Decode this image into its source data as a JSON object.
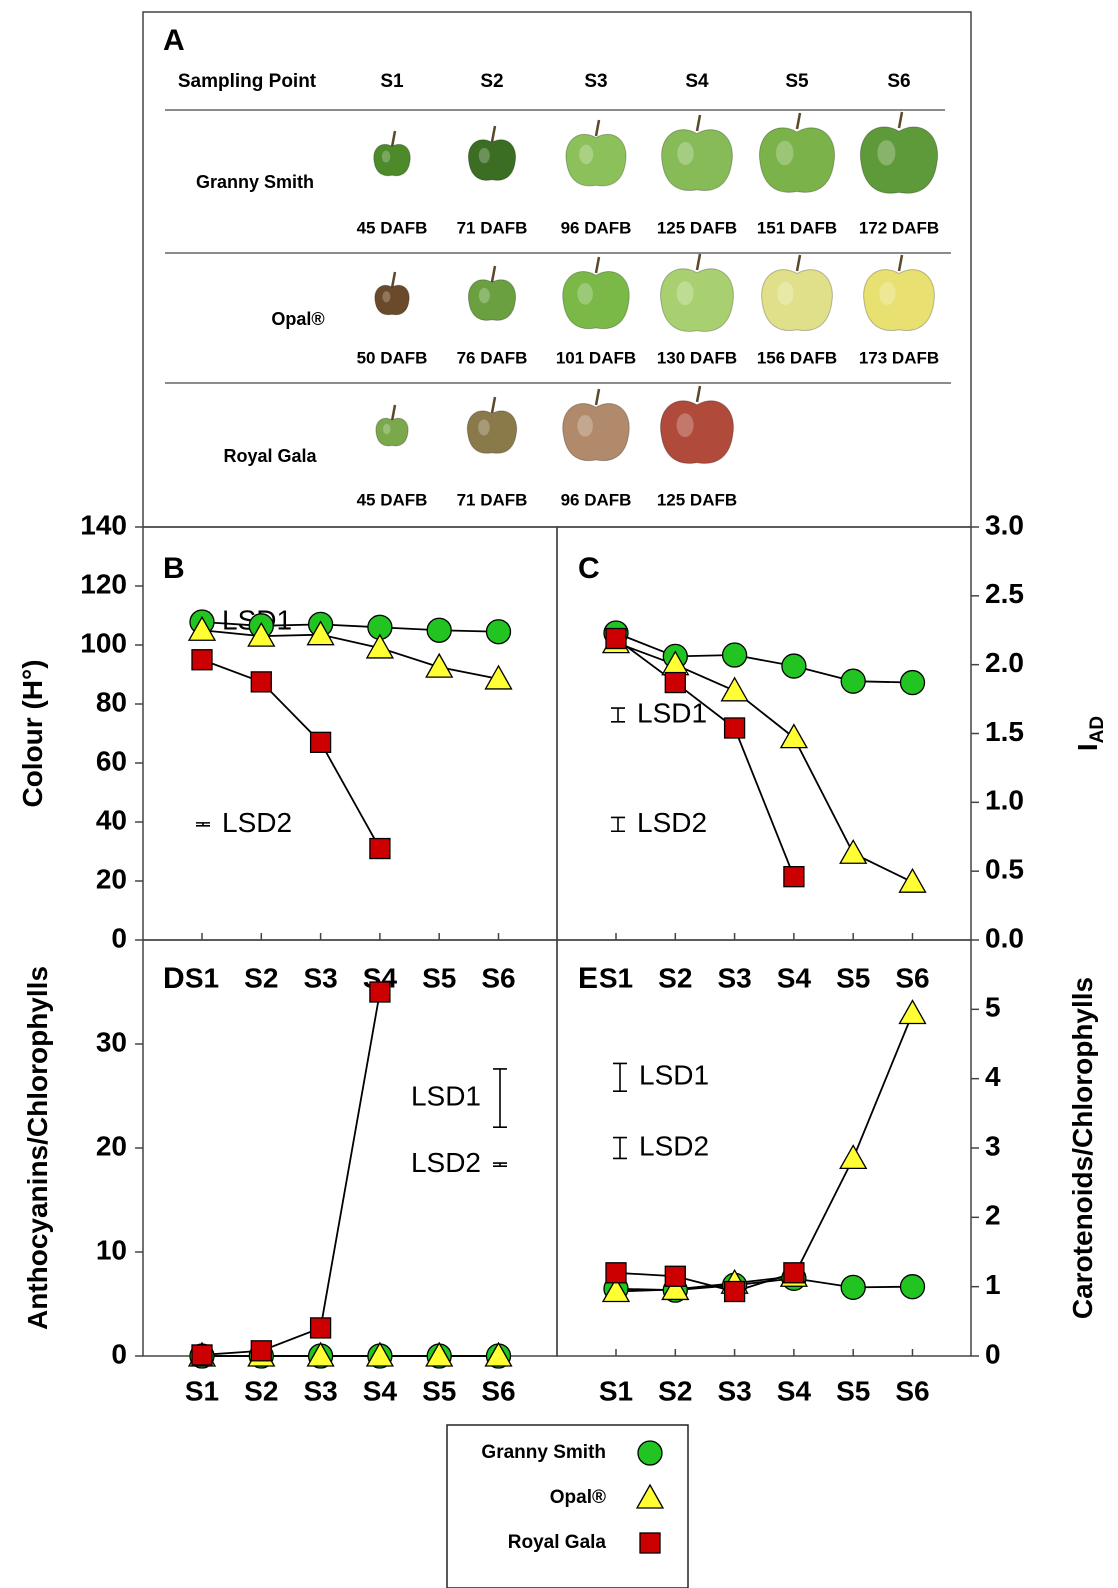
{
  "panel_a": {
    "label": "A",
    "header_label": "Sampling Point",
    "columns": [
      "S1",
      "S2",
      "S3",
      "S4",
      "S5",
      "S6"
    ],
    "rows": [
      {
        "name": "Granny Smith",
        "dafb": [
          "45 DAFB",
          "71 DAFB",
          "96 DAFB",
          "125 DAFB",
          "151 DAFB",
          "172 DAFB"
        ]
      },
      {
        "name": "Opal®",
        "dafb": [
          "50 DAFB",
          "76 DAFB",
          "101 DAFB",
          "130 DAFB",
          "156 DAFB",
          "173 DAFB"
        ]
      },
      {
        "name": "Royal Gala",
        "dafb": [
          "45 DAFB",
          "71 DAFB",
          "96 DAFB",
          "125 DAFB"
        ]
      }
    ]
  },
  "chart_data": [
    {
      "type": "line",
      "panel_label": "B",
      "y_label": "Colour (H°)",
      "y_axis_side": "left",
      "categories": [
        "S1",
        "S2",
        "S3",
        "S4",
        "S5",
        "S6"
      ],
      "series": [
        {
          "name": "Granny Smith",
          "color": "#22c422",
          "marker": "circle",
          "values": [
            107.8,
            106.5,
            107,
            106,
            105,
            104.5
          ]
        },
        {
          "name": "Opal®",
          "color": "#ffff33",
          "marker": "triangle",
          "values": [
            105,
            103,
            103.5,
            99,
            92.5,
            88.5
          ]
        },
        {
          "name": "Royal Gala",
          "color": "#cc0000",
          "marker": "square",
          "values": [
            95,
            87.5,
            67,
            31,
            null,
            null
          ]
        }
      ],
      "ylim": [
        0,
        140
      ],
      "yticks": [
        0,
        20,
        40,
        60,
        80,
        100,
        120,
        140
      ],
      "lsd": [
        {
          "label": "LSD1",
          "value": 6.4
        },
        {
          "label": "LSD2",
          "value": 1
        }
      ]
    },
    {
      "type": "line",
      "panel_label": "C",
      "y_label": "I",
      "y_label_sub": "AD",
      "y_axis_side": "right",
      "categories": [
        "S1",
        "S2",
        "S3",
        "S4",
        "S5",
        "S6"
      ],
      "series": [
        {
          "name": "Granny Smith",
          "color": "#22c422",
          "marker": "circle",
          "values": [
            2.23,
            2.06,
            2.07,
            1.99,
            1.88,
            1.87
          ]
        },
        {
          "name": "Opal®",
          "color": "#ffff33",
          "marker": "triangle",
          "values": [
            2.16,
            2.0,
            1.81,
            1.47,
            0.63,
            0.42
          ]
        },
        {
          "name": "Royal Gala",
          "color": "#cc0000",
          "marker": "square",
          "values": [
            2.19,
            1.87,
            1.54,
            0.46,
            null,
            null
          ]
        }
      ],
      "ylim": [
        0,
        3
      ],
      "yticks": [
        {
          "value": 0,
          "label": "0.0"
        },
        0.5,
        {
          "value": 1,
          "label": "1.0"
        },
        1.5,
        {
          "value": 2,
          "label": "2.0"
        },
        2.5,
        {
          "value": 3,
          "label": "3.0"
        }
      ],
      "lsd": [
        {
          "label": "LSD1",
          "value": 0.1
        },
        {
          "label": "LSD2",
          "value": 0.1
        }
      ]
    },
    {
      "type": "line",
      "panel_label": "D",
      "y_label": "Anthocyanins/Chlorophylls",
      "y_axis_side": "left",
      "categories": [
        "S1",
        "S2",
        "S3",
        "S4",
        "S5",
        "S6"
      ],
      "series": [
        {
          "name": "Granny Smith",
          "color": "#22c422",
          "marker": "circle",
          "values": [
            0,
            0,
            0,
            0,
            0,
            0
          ]
        },
        {
          "name": "Opal®",
          "color": "#ffff33",
          "marker": "triangle",
          "values": [
            0,
            0,
            0,
            0,
            0,
            0
          ]
        },
        {
          "name": "Royal Gala",
          "color": "#cc0000",
          "marker": "square",
          "values": [
            0.1,
            0.5,
            2.7,
            35,
            null,
            null
          ]
        }
      ],
      "ylim": [
        0,
        40
      ],
      "yticks": [
        0,
        10,
        20,
        30
      ],
      "lsd": [
        {
          "label": "LSD1",
          "value": 5.6
        },
        {
          "label": "LSD2",
          "value": 0.3
        }
      ]
    },
    {
      "type": "line",
      "panel_label": "E",
      "y_label": "Carotenoids/Chlorophylls",
      "y_axis_side": "right",
      "categories": [
        "S1",
        "S2",
        "S3",
        "S4",
        "S5",
        "S6"
      ],
      "series": [
        {
          "name": "Granny Smith",
          "color": "#22c422",
          "marker": "circle",
          "values": [
            0.97,
            0.95,
            1.02,
            1.12,
            0.99,
            1.0
          ]
        },
        {
          "name": "Opal®",
          "color": "#ffff33",
          "marker": "triangle",
          "values": [
            0.93,
            0.96,
            1.05,
            1.15,
            2.85,
            4.94
          ]
        },
        {
          "name": "Royal Gala",
          "color": "#cc0000",
          "marker": "square",
          "values": [
            1.2,
            1.15,
            0.93,
            1.2,
            null,
            null
          ]
        }
      ],
      "ylim": [
        0,
        6
      ],
      "yticks": [
        0,
        1,
        2,
        3,
        4,
        5
      ],
      "lsd": [
        {
          "label": "LSD1",
          "value": 0.4
        },
        {
          "label": "LSD2",
          "value": 0.3
        }
      ]
    }
  ]
}
